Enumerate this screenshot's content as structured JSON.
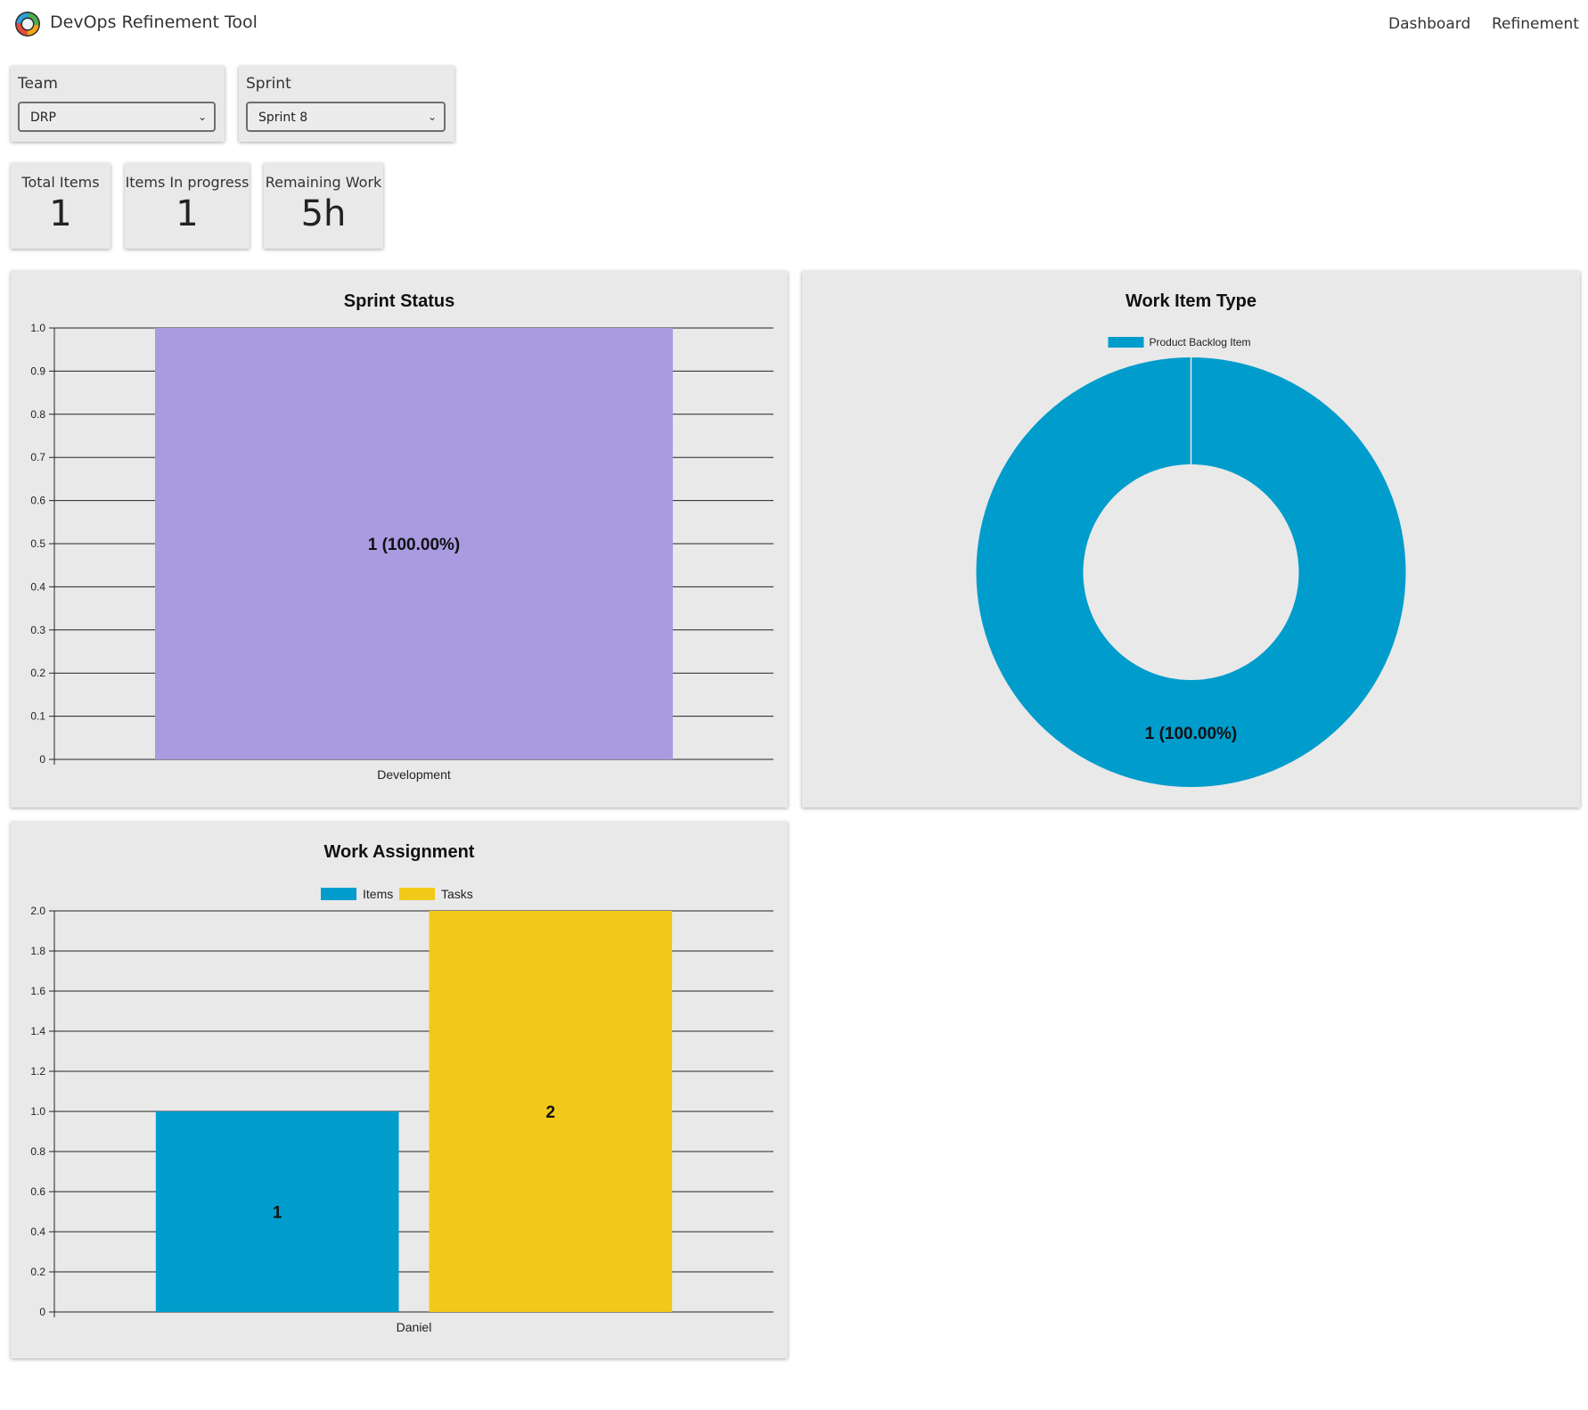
{
  "header": {
    "title": "DevOps Refinement Tool",
    "nav": [
      "Dashboard",
      "Refinement"
    ]
  },
  "filters": {
    "team": {
      "label": "Team",
      "value": "DRP"
    },
    "sprint": {
      "label": "Sprint",
      "value": "Sprint 8"
    }
  },
  "stats": [
    {
      "label": "Total Items",
      "value": "1"
    },
    {
      "label": "Items In progress",
      "value": "1"
    },
    {
      "label": "Remaining Work",
      "value": "5h"
    }
  ],
  "colors": {
    "status": "#a99be0",
    "items": "#009ccc",
    "tasks": "#f2c919",
    "card": "#e9e9e9"
  },
  "chart_data": [
    {
      "type": "bar",
      "title": "Sprint Status",
      "categories": [
        "Development"
      ],
      "values": [
        1
      ],
      "data_labels": [
        "1 (100.00%)"
      ],
      "ylim": [
        0,
        1.0
      ],
      "yticks": [
        "0",
        "0.1",
        "0.2",
        "0.3",
        "0.4",
        "0.5",
        "0.6",
        "0.7",
        "0.8",
        "0.9",
        "1.0"
      ],
      "grid": true,
      "legend": "none"
    },
    {
      "type": "pie",
      "title": "Work Item Type",
      "slices": [
        {
          "label": "Product Backlog Item",
          "value": 1,
          "data_label": "1 (100.00%)"
        }
      ],
      "legend": "top"
    },
    {
      "type": "bar",
      "title": "Work Assignment",
      "categories": [
        "Daniel"
      ],
      "series": [
        {
          "name": "Items",
          "values": [
            1
          ],
          "data_labels": [
            "1"
          ]
        },
        {
          "name": "Tasks",
          "values": [
            2
          ],
          "data_labels": [
            "2"
          ]
        }
      ],
      "ylim": [
        0,
        2.0
      ],
      "yticks": [
        "0",
        "0.2",
        "0.4",
        "0.6",
        "0.8",
        "1.0",
        "1.2",
        "1.4",
        "1.6",
        "1.8",
        "2.0"
      ],
      "grid": true,
      "legend": "top"
    }
  ]
}
